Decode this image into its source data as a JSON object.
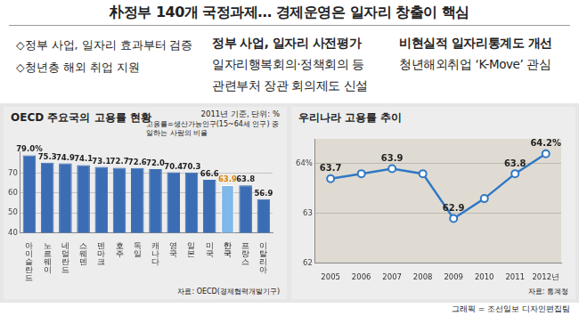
{
  "header": {
    "title": "朴정부 140개 국정과제… 경제운영은 일자리 창출이 핵심",
    "bullets": [
      "◇정부 사업, 일자리 효과부터 검증",
      "◇청년층 해외 취업 지원"
    ],
    "columns": [
      {
        "head": "정부 사업, 일자리 사전평가",
        "lines": [
          "일자리행복회의·정책회의 등",
          "관련부처 장관 회의제도 신설"
        ]
      },
      {
        "head": "비현실적 일자리통계도 개선",
        "lines": [
          "청년해외취업 ‘K-Move’ 관심"
        ]
      }
    ]
  },
  "credit": "그래픽 = 조선일보 디자인편집팀",
  "chart_data": [
    {
      "type": "bar",
      "title": "OECD 주요국의 고용률 현황",
      "subtitle": "2011년 기준, 단위: %",
      "note": "고용률=생산가능인구(15~64세 인구) 중 일하는 사람의 비율",
      "source": "자료: OECD(경제협력개발기구)",
      "categories": [
        "아이슬란드",
        "노르웨이",
        "네덜란드",
        "스웨덴",
        "덴마크",
        "호주",
        "독일",
        "캐나다",
        "영국",
        "일본",
        "미국",
        "한국",
        "프랑스",
        "이탈리아"
      ],
      "values": [
        79.0,
        75.3,
        74.9,
        74.1,
        73.1,
        72.7,
        72.6,
        72.0,
        70.4,
        70.3,
        66.6,
        63.9,
        63.8,
        56.9
      ],
      "value_labels": [
        "79.0%",
        "75.3",
        "74.9",
        "74.1",
        "73.1",
        "72.7",
        "72.6",
        "72.0",
        "70.4",
        "70.3",
        "66.6",
        "63.9",
        "63.8",
        "56.9"
      ],
      "colors": [
        "#3b6db4",
        "#3b6db4",
        "#3b6db4",
        "#3b6db4",
        "#3b6db4",
        "#3b6db4",
        "#3b6db4",
        "#3b6db4",
        "#3b6db4",
        "#3b6db4",
        "#3b6db4",
        "#7fb8ea",
        "#3b6db4",
        "#3b6db4"
      ],
      "ylim": [
        40,
        81
      ],
      "yticks": [
        40,
        50,
        60,
        70
      ],
      "grid": true,
      "data_labels": true
    },
    {
      "type": "line",
      "title": "우리나라 고용률 추이",
      "source": "자료: 통계청",
      "categories": [
        "2005",
        "2006",
        "2007",
        "2008",
        "2009",
        "2010",
        "2011",
        "2012년"
      ],
      "values": [
        63.7,
        63.8,
        63.9,
        63.8,
        62.9,
        63.3,
        63.8,
        64.2
      ],
      "value_labels": [
        "63.7",
        null,
        "63.9",
        null,
        "62.9",
        null,
        "63.8",
        "64.2%"
      ],
      "color": "#2f78c4",
      "marker": "circle",
      "line_style": "solid",
      "ylim": [
        62,
        64.5
      ],
      "yticks": [
        62,
        63,
        {
          "value": 64,
          "label": "64%"
        }
      ],
      "grid": true,
      "data_labels": true
    }
  ]
}
